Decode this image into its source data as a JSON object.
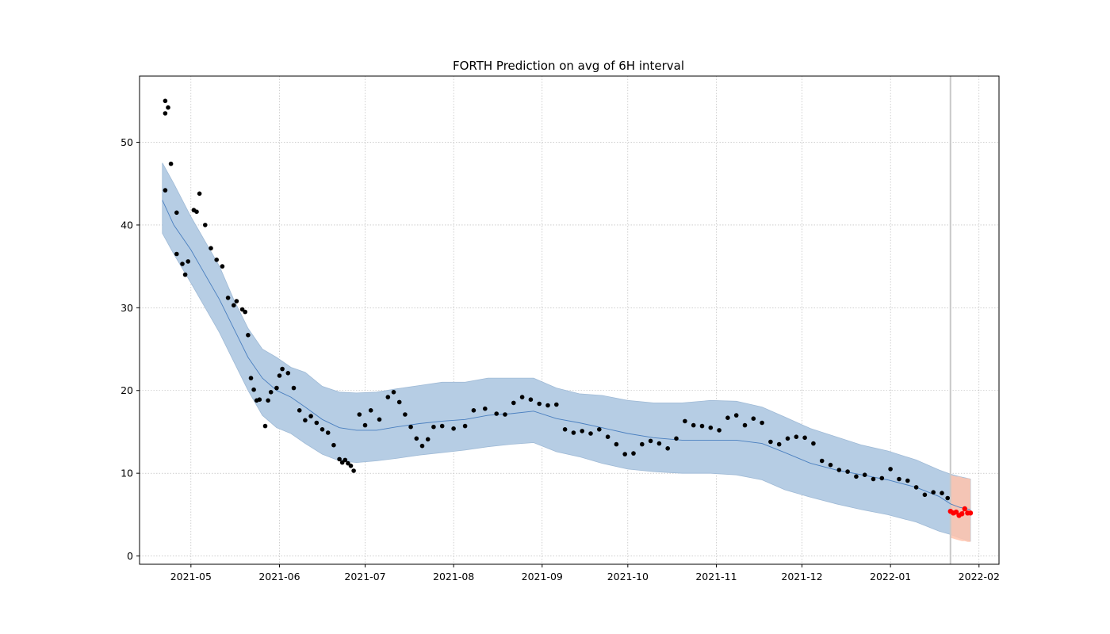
{
  "chart_data": {
    "type": "line",
    "title": "FORTH Prediction on avg of 6H interval",
    "xlabel": "",
    "ylabel": "",
    "xlim": [
      "2021-04-13",
      "2022-02-08"
    ],
    "ylim": [
      -1,
      58
    ],
    "x_ticks": [
      "2021-05",
      "2021-06",
      "2021-07",
      "2021-08",
      "2021-09",
      "2021-10",
      "2021-11",
      "2021-12",
      "2022-01",
      "2022-02"
    ],
    "y_ticks": [
      0,
      10,
      20,
      30,
      40,
      50
    ],
    "grid": true,
    "forecast_start": "2022-01-22",
    "colors": {
      "observed": "#000000",
      "fit_line": "#4a7fbf",
      "interval_fill": "#b6cde4",
      "forecast_points": "#ff0000",
      "forecast_interval": "#ffc3ad",
      "forecast_divider": "#c8c8c8"
    },
    "series": [
      {
        "role": "fit",
        "x": [
          "2021-04-21",
          "2021-04-25",
          "2021-05-01",
          "2021-05-06",
          "2021-05-11",
          "2021-05-16",
          "2021-05-21",
          "2021-05-26",
          "2021-05-31",
          "2021-06-05",
          "2021-06-10",
          "2021-06-16",
          "2021-06-22",
          "2021-06-28",
          "2021-07-05",
          "2021-07-12",
          "2021-07-20",
          "2021-07-28",
          "2021-08-05",
          "2021-08-13",
          "2021-08-21",
          "2021-08-29",
          "2021-09-06",
          "2021-09-14",
          "2021-09-22",
          "2021-10-01",
          "2021-10-10",
          "2021-10-20",
          "2021-10-30",
          "2021-11-08",
          "2021-11-17",
          "2021-11-25",
          "2021-12-04",
          "2021-12-13",
          "2021-12-22",
          "2021-12-31",
          "2022-01-10",
          "2022-01-18",
          "2022-01-22",
          "2022-01-25",
          "2022-01-29"
        ],
        "y": [
          43,
          40,
          37,
          34,
          31,
          27.5,
          24,
          21.5,
          20,
          19.2,
          18,
          16.5,
          15.5,
          15.2,
          15.2,
          15.6,
          16,
          16.3,
          16.5,
          17,
          17.2,
          17.5,
          16.6,
          16.1,
          15.5,
          14.8,
          14.3,
          14,
          14,
          14,
          13.6,
          12.5,
          11.2,
          10.4,
          9.8,
          9.2,
          8.3,
          7.2,
          6.3,
          5.9,
          5.6
        ],
        "lower": [
          39,
          36.5,
          33,
          30,
          27,
          23.5,
          20,
          17,
          15.5,
          14.8,
          13.6,
          12.3,
          11.5,
          11.3,
          11.5,
          11.8,
          12.2,
          12.5,
          12.8,
          13.2,
          13.5,
          13.7,
          12.6,
          12,
          11.2,
          10.5,
          10.2,
          10,
          10,
          9.8,
          9.2,
          8,
          7.1,
          6.3,
          5.6,
          5,
          4.1,
          3,
          2.6,
          2.2,
          1.8
        ],
        "upper": [
          47.5,
          45,
          41,
          38,
          35,
          31,
          27.5,
          25,
          24,
          22.8,
          22.2,
          20.5,
          19.8,
          19.7,
          19.8,
          20.2,
          20.6,
          21,
          21,
          21.5,
          21.5,
          21.5,
          20.3,
          19.6,
          19.4,
          18.8,
          18.5,
          18.5,
          18.8,
          18.7,
          18,
          16.8,
          15.4,
          14.4,
          13.4,
          12.7,
          11.6,
          10.4,
          9.9,
          9.6,
          9.3
        ]
      },
      {
        "role": "observed",
        "x": [
          "2021-04-22",
          "2021-04-22",
          "2021-04-23",
          "2021-04-22",
          "2021-04-24",
          "2021-04-26",
          "2021-04-26",
          "2021-04-28",
          "2021-04-29",
          "2021-04-30",
          "2021-05-02",
          "2021-05-03",
          "2021-05-04",
          "2021-05-06",
          "2021-05-08",
          "2021-05-10",
          "2021-05-12",
          "2021-05-14",
          "2021-05-16",
          "2021-05-17",
          "2021-05-19",
          "2021-05-20",
          "2021-05-21",
          "2021-05-22",
          "2021-05-23",
          "2021-05-24",
          "2021-05-25",
          "2021-05-27",
          "2021-05-28",
          "2021-05-29",
          "2021-05-31",
          "2021-06-01",
          "2021-06-02",
          "2021-06-04",
          "2021-06-06",
          "2021-06-08",
          "2021-06-10",
          "2021-06-12",
          "2021-06-14",
          "2021-06-16",
          "2021-06-18",
          "2021-06-20",
          "2021-06-22",
          "2021-06-23",
          "2021-06-24",
          "2021-06-25",
          "2021-06-26",
          "2021-06-27",
          "2021-06-29",
          "2021-07-01",
          "2021-07-03",
          "2021-07-06",
          "2021-07-09",
          "2021-07-11",
          "2021-07-13",
          "2021-07-15",
          "2021-07-17",
          "2021-07-19",
          "2021-07-21",
          "2021-07-23",
          "2021-07-25",
          "2021-07-28",
          "2021-08-01",
          "2021-08-05",
          "2021-08-08",
          "2021-08-12",
          "2021-08-16",
          "2021-08-19",
          "2021-08-22",
          "2021-08-25",
          "2021-08-28",
          "2021-08-31",
          "2021-09-03",
          "2021-09-06",
          "2021-09-09",
          "2021-09-12",
          "2021-09-15",
          "2021-09-18",
          "2021-09-21",
          "2021-09-24",
          "2021-09-27",
          "2021-09-30",
          "2021-10-03",
          "2021-10-06",
          "2021-10-09",
          "2021-10-12",
          "2021-10-15",
          "2021-10-18",
          "2021-10-21",
          "2021-10-24",
          "2021-10-27",
          "2021-10-30",
          "2021-11-02",
          "2021-11-05",
          "2021-11-08",
          "2021-11-11",
          "2021-11-14",
          "2021-11-17",
          "2021-11-20",
          "2021-11-23",
          "2021-11-26",
          "2021-11-29",
          "2021-12-02",
          "2021-12-05",
          "2021-12-08",
          "2021-12-11",
          "2021-12-14",
          "2021-12-17",
          "2021-12-20",
          "2021-12-23",
          "2021-12-26",
          "2021-12-29",
          "2022-01-01",
          "2022-01-04",
          "2022-01-07",
          "2022-01-10",
          "2022-01-13",
          "2022-01-16",
          "2022-01-19",
          "2022-01-21"
        ],
        "y": [
          44.2,
          55,
          54.2,
          53.5,
          47.4,
          41.5,
          36.5,
          35.3,
          34,
          35.6,
          41.8,
          41.6,
          43.8,
          40,
          37.2,
          35.8,
          35,
          31.2,
          30.3,
          30.8,
          29.8,
          29.5,
          26.7,
          21.5,
          20.1,
          18.8,
          18.9,
          15.7,
          18.8,
          19.8,
          20.3,
          21.8,
          22.6,
          22.1,
          20.3,
          17.6,
          16.4,
          16.9,
          16.1,
          15.3,
          14.9,
          13.4,
          11.7,
          11.3,
          11.6,
          11.2,
          10.9,
          10.3,
          17.1,
          15.8,
          17.6,
          16.5,
          19.2,
          19.8,
          18.6,
          17.1,
          15.6,
          14.2,
          13.3,
          14.1,
          15.6,
          15.7,
          15.4,
          15.7,
          17.6,
          17.8,
          17.2,
          17.1,
          18.5,
          19.2,
          18.9,
          18.4,
          18.2,
          18.3,
          15.3,
          14.9,
          15.1,
          14.8,
          15.3,
          14.4,
          13.5,
          12.3,
          12.4,
          13.5,
          13.9,
          13.6,
          13,
          14.2,
          16.3,
          15.8,
          15.7,
          15.5,
          15.2,
          16.7,
          17,
          15.8,
          16.6,
          16.1,
          13.8,
          13.5,
          14.2,
          14.4,
          14.3,
          13.6,
          11.5,
          11,
          10.4,
          10.2,
          9.6,
          9.8,
          9.3,
          9.4,
          10.5,
          9.3,
          9.1,
          8.3,
          7.4,
          7.7,
          7.6,
          7
        ]
      },
      {
        "role": "forecast",
        "x": [
          "2022-01-22",
          "2022-01-23",
          "2022-01-24",
          "2022-01-25",
          "2022-01-26",
          "2022-01-27",
          "2022-01-28",
          "2022-01-29"
        ],
        "y": [
          5.4,
          5.2,
          5.3,
          4.9,
          5.1,
          5.7,
          5.2,
          5.2
        ],
        "lower": [
          2.2,
          2.1,
          2,
          1.9,
          1.8,
          1.8,
          1.7,
          1.7
        ],
        "upper": [
          9.8,
          9.7,
          9.6,
          9.6,
          9.5,
          9.4,
          9.4,
          9.3
        ]
      }
    ]
  }
}
